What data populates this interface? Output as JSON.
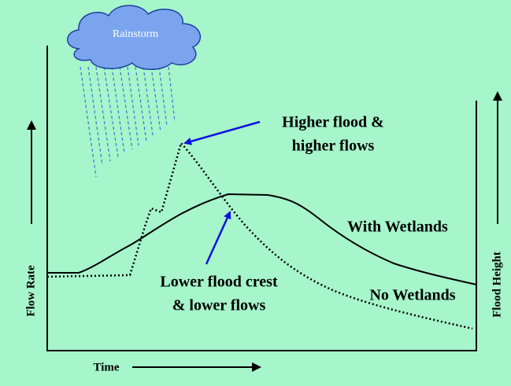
{
  "cloud": {
    "label": "Rainstorm"
  },
  "annotations": {
    "higher": [
      "Higher flood &",
      "higher flows"
    ],
    "lower": [
      "Lower flood crest",
      "& lower flows"
    ]
  },
  "curves": {
    "with": "With Wetlands",
    "without": "No Wetlands"
  },
  "axes": {
    "left": "Flow Rate",
    "right": "Flood Height",
    "bottom": "Time"
  }
}
